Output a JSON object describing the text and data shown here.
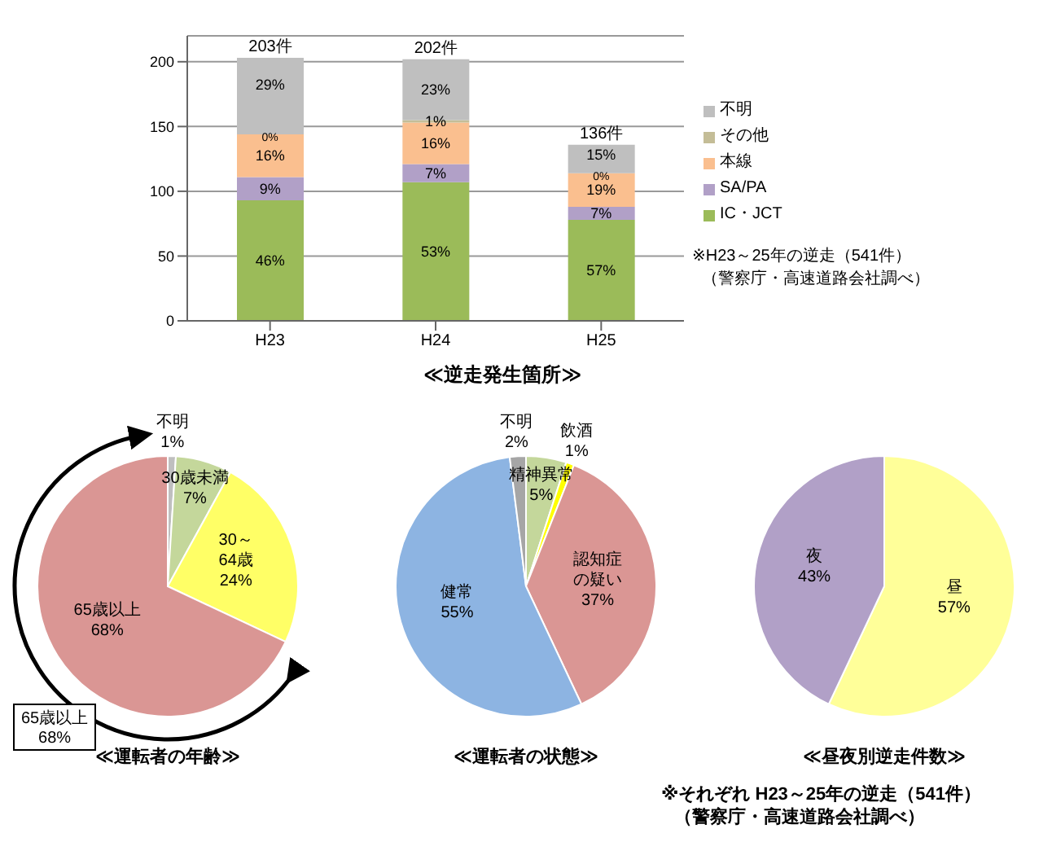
{
  "chart_data": [
    {
      "type": "bar",
      "title": "≪逆走発生箇所≫",
      "categories": [
        "H23",
        "H24",
        "H25"
      ],
      "stacked": true,
      "ylim": [
        0,
        220
      ],
      "yticks": [
        0,
        50,
        100,
        150,
        200
      ],
      "grid": "y",
      "legend": "right",
      "totals": [
        "203件",
        "202件",
        "136件"
      ],
      "annotations": [
        "※H23～25年の逆走（541件）",
        "（警察庁・高速道路会社調べ）",
        "46%",
        "9%",
        "16%",
        "0%",
        "29%",
        "53%",
        "7%",
        "16%",
        "1%",
        "23%",
        "57%",
        "7%",
        "19%",
        "0%",
        "15%"
      ],
      "series": [
        {
          "name": "IC・JCT",
          "color": "#9bbb59",
          "values": [
            93,
            107,
            78
          ]
        },
        {
          "name": "SA/PA",
          "color": "#b1a0c7",
          "values": [
            18,
            14,
            10
          ]
        },
        {
          "name": "本線",
          "color": "#fabf8f",
          "values": [
            33,
            32,
            26
          ]
        },
        {
          "name": "その他",
          "color": "#c4bd97",
          "values": [
            0,
            2,
            0
          ]
        },
        {
          "name": "不明",
          "color": "#bfbfbf",
          "values": [
            59,
            47,
            22
          ]
        }
      ]
    },
    {
      "type": "pie",
      "title": "≪運転者の年齢≫",
      "categories": [
        "不明",
        "30歳未満",
        "30～64歳",
        "65歳以上"
      ],
      "values": [
        1,
        7,
        24,
        68
      ],
      "colors": [
        "#bfbfbf",
        "#c4d79b",
        "#ffff66",
        "#da9694"
      ],
      "value_labels": [
        "1%",
        "7%",
        "24%",
        "68%"
      ],
      "annotations": [
        "65歳以上\n68%"
      ]
    },
    {
      "type": "pie",
      "title": "≪運転者の状態≫",
      "categories": [
        "精神異常",
        "飲酒",
        "認知症の疑い",
        "健常",
        "不明"
      ],
      "values": [
        5,
        1,
        37,
        55,
        2
      ],
      "colors": [
        "#c4d79b",
        "#ffff00",
        "#da9694",
        "#8db4e2",
        "#a6a6a6"
      ],
      "value_labels": [
        "5%",
        "1%",
        "37%",
        "55%",
        "2%"
      ]
    },
    {
      "type": "pie",
      "title": "≪昼夜別逆走件数≫",
      "categories": [
        "昼",
        "夜"
      ],
      "values": [
        57,
        43
      ],
      "colors": [
        "#ffff99",
        "#b1a0c7"
      ],
      "value_labels": [
        "57%",
        "43%"
      ],
      "annotations": [
        "※それぞれ H23～25年の逆走（541件）",
        "（警察庁・高速道路会社調べ）"
      ]
    }
  ]
}
